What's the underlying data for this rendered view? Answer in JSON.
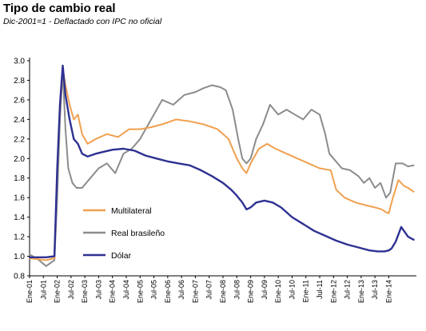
{
  "chart_data": {
    "type": "line",
    "title": "Tipo de cambio real",
    "subtitle": "Dic-2001=1 - Deflactado con IPC no oficial",
    "ylim": [
      0.8,
      3.0
    ],
    "yticks": [
      "3.0",
      "2.8",
      "2.6",
      "2.4",
      "2.2",
      "2.0",
      "1.8",
      "1.6",
      "1.4",
      "1.2",
      "1.0",
      "0.8"
    ],
    "xlim": [
      2001.0,
      2015.0
    ],
    "xticks": [
      "Ene-01",
      "Jul-01",
      "Ene-02",
      "Jul-02",
      "Ene-03",
      "Jul-03",
      "Ene-04",
      "Jul-04",
      "Ene-05",
      "Jul-05",
      "Ene-06",
      "Jul-06",
      "Ene-07",
      "Jul-07",
      "Ene-08",
      "Jul-08",
      "Ene-09",
      "Jul-09",
      "Ene-10",
      "Jul-10",
      "Ene-11",
      "Jul-11",
      "Ene-12",
      "Jul-12",
      "Ene-13",
      "Jul-13",
      "Ene-14"
    ],
    "grid": false,
    "legend_position": "bottom-left",
    "series": [
      {
        "name": "Multilateral",
        "color": "#F0A050",
        "x": [
          2001.0,
          2001.3,
          2001.6,
          2001.9,
          2002.0,
          2002.1,
          2002.2,
          2002.3,
          2002.45,
          2002.6,
          2002.75,
          2002.9,
          2003.1,
          2003.4,
          2003.8,
          2004.2,
          2004.6,
          2005.0,
          2005.4,
          2005.8,
          2006.3,
          2006.8,
          2007.3,
          2007.8,
          2008.2,
          2008.5,
          2008.7,
          2008.85,
          2009.0,
          2009.3,
          2009.6,
          2009.9,
          2010.3,
          2010.7,
          2011.1,
          2011.5,
          2011.9,
          2012.1,
          2012.4,
          2012.8,
          2013.2,
          2013.5,
          2013.75,
          2013.9,
          2014.0,
          2014.15,
          2014.35,
          2014.55,
          2014.7,
          2014.9
        ],
        "y": [
          0.98,
          0.97,
          0.96,
          0.98,
          1.9,
          2.5,
          2.92,
          2.75,
          2.55,
          2.4,
          2.45,
          2.25,
          2.15,
          2.2,
          2.25,
          2.22,
          2.3,
          2.3,
          2.32,
          2.35,
          2.4,
          2.38,
          2.35,
          2.3,
          2.2,
          2.0,
          1.9,
          1.85,
          1.95,
          2.1,
          2.15,
          2.1,
          2.05,
          2.0,
          1.95,
          1.9,
          1.88,
          1.68,
          1.6,
          1.55,
          1.52,
          1.5,
          1.48,
          1.45,
          1.44,
          1.6,
          1.78,
          1.72,
          1.7,
          1.66
        ]
      },
      {
        "name": "Real brasileño",
        "color": "#8C8C8C",
        "x": [
          2001.0,
          2001.3,
          2001.6,
          2001.9,
          2002.0,
          2002.1,
          2002.2,
          2002.3,
          2002.4,
          2002.55,
          2002.7,
          2002.9,
          2003.2,
          2003.5,
          2003.8,
          2004.1,
          2004.4,
          2004.7,
          2005.0,
          2005.4,
          2005.8,
          2006.2,
          2006.6,
          2007.0,
          2007.3,
          2007.6,
          2007.9,
          2008.1,
          2008.35,
          2008.55,
          2008.7,
          2008.85,
          2009.0,
          2009.2,
          2009.45,
          2009.7,
          2010.0,
          2010.3,
          2010.6,
          2010.9,
          2011.2,
          2011.5,
          2011.7,
          2011.85,
          2012.0,
          2012.3,
          2012.6,
          2012.9,
          2013.1,
          2013.3,
          2013.5,
          2013.7,
          2013.9,
          2014.05,
          2014.25,
          2014.5,
          2014.7,
          2014.9
        ],
        "y": [
          1.02,
          0.97,
          0.9,
          0.96,
          1.6,
          2.4,
          2.9,
          2.3,
          1.9,
          1.75,
          1.7,
          1.7,
          1.8,
          1.9,
          1.95,
          1.85,
          2.05,
          2.1,
          2.2,
          2.4,
          2.6,
          2.55,
          2.65,
          2.68,
          2.72,
          2.75,
          2.73,
          2.7,
          2.5,
          2.2,
          2.0,
          1.95,
          2.0,
          2.2,
          2.35,
          2.55,
          2.45,
          2.5,
          2.45,
          2.4,
          2.5,
          2.45,
          2.25,
          2.05,
          2.0,
          1.9,
          1.88,
          1.82,
          1.75,
          1.8,
          1.7,
          1.75,
          1.6,
          1.65,
          1.95,
          1.95,
          1.92,
          1.93
        ]
      },
      {
        "name": "Dólar",
        "color": "#2E3192",
        "x": [
          2001.0,
          2001.3,
          2001.6,
          2001.9,
          2002.0,
          2002.1,
          2002.2,
          2002.3,
          2002.45,
          2002.6,
          2002.75,
          2002.9,
          2003.1,
          2003.4,
          2003.7,
          2004.0,
          2004.4,
          2004.8,
          2005.2,
          2005.6,
          2006.0,
          2006.4,
          2006.8,
          2007.2,
          2007.6,
          2008.0,
          2008.3,
          2008.5,
          2008.7,
          2008.85,
          2009.0,
          2009.2,
          2009.5,
          2009.8,
          2010.1,
          2010.5,
          2010.9,
          2011.3,
          2011.7,
          2012.1,
          2012.5,
          2012.9,
          2013.3,
          2013.6,
          2013.85,
          2014.0,
          2014.1,
          2014.25,
          2014.45,
          2014.7,
          2014.9
        ],
        "y": [
          0.99,
          0.99,
          0.99,
          1.0,
          1.9,
          2.55,
          2.95,
          2.65,
          2.4,
          2.2,
          2.15,
          2.05,
          2.02,
          2.05,
          2.07,
          2.09,
          2.1,
          2.08,
          2.03,
          2.0,
          1.97,
          1.95,
          1.93,
          1.88,
          1.82,
          1.75,
          1.68,
          1.62,
          1.55,
          1.48,
          1.5,
          1.55,
          1.57,
          1.55,
          1.5,
          1.4,
          1.33,
          1.26,
          1.21,
          1.16,
          1.12,
          1.09,
          1.06,
          1.05,
          1.05,
          1.06,
          1.08,
          1.15,
          1.3,
          1.2,
          1.17
        ]
      }
    ]
  }
}
